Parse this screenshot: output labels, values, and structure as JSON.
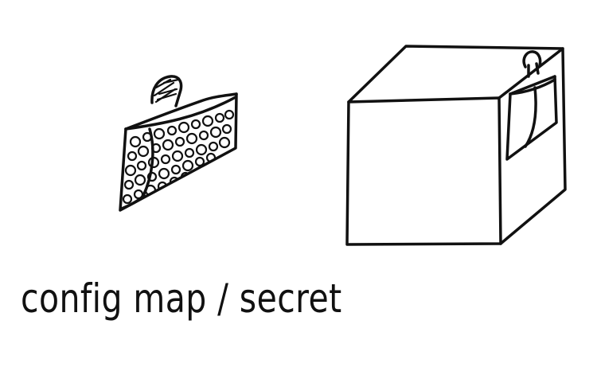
{
  "caption": {
    "text": "config map / secret"
  },
  "colors": {
    "ink": "#111111",
    "background": "#ffffff"
  },
  "icons": {
    "pouch": "config-pouch-icon",
    "box": "container-box-icon"
  }
}
